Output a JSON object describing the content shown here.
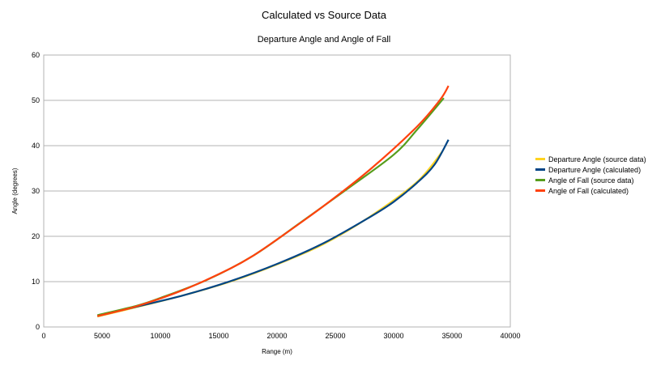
{
  "chart_data": {
    "type": "line",
    "title": "Calculated vs Source Data",
    "subtitle": "Departure Angle and Angle of Fall",
    "xlabel": "Range (m)",
    "ylabel": "Angle (degrees)",
    "xlim": [
      0,
      40000
    ],
    "ylim": [
      0,
      60
    ],
    "x_ticks": [
      "0",
      "5000",
      "10000",
      "15000",
      "20000",
      "25000",
      "30000",
      "35000",
      "40000"
    ],
    "y_ticks": [
      "0",
      "10",
      "20",
      "30",
      "40",
      "50",
      "60"
    ],
    "grid": true,
    "legend_position": "right",
    "series": [
      {
        "name": "Departure Angle (source data)",
        "color": "#ffd320",
        "points": [
          [
            4600,
            2.3
          ],
          [
            8000,
            4.4
          ],
          [
            12000,
            7.0
          ],
          [
            16000,
            10.0
          ],
          [
            20000,
            13.8
          ],
          [
            24000,
            18.3
          ],
          [
            28000,
            24.4
          ],
          [
            32000,
            32.0
          ],
          [
            34200,
            38.8
          ]
        ]
      },
      {
        "name": "Departure Angle (calculated)",
        "color": "#004586",
        "points": [
          [
            4600,
            2.4
          ],
          [
            8000,
            4.5
          ],
          [
            12000,
            7.0
          ],
          [
            16000,
            10.1
          ],
          [
            20000,
            13.9
          ],
          [
            24000,
            18.5
          ],
          [
            28000,
            24.3
          ],
          [
            30000,
            27.6
          ],
          [
            32000,
            31.8
          ],
          [
            33500,
            35.8
          ],
          [
            34700,
            41.3
          ]
        ]
      },
      {
        "name": "Angle of Fall (source data)",
        "color": "#579d1c",
        "points": [
          [
            4600,
            2.6
          ],
          [
            8000,
            4.7
          ],
          [
            10000,
            6.4
          ],
          [
            14000,
            10.4
          ],
          [
            18000,
            15.8
          ],
          [
            22000,
            23.0
          ],
          [
            26000,
            30.4
          ],
          [
            30000,
            38.0
          ],
          [
            32000,
            43.5
          ],
          [
            34300,
            50.5
          ]
        ]
      },
      {
        "name": "Angle of Fall (calculated)",
        "color": "#ff420e",
        "points": [
          [
            4600,
            2.4
          ],
          [
            8000,
            4.6
          ],
          [
            12000,
            8.2
          ],
          [
            16000,
            12.9
          ],
          [
            18000,
            15.8
          ],
          [
            20000,
            19.3
          ],
          [
            24000,
            26.7
          ],
          [
            28000,
            34.8
          ],
          [
            32000,
            44.2
          ],
          [
            34000,
            50.2
          ],
          [
            34700,
            53.2
          ]
        ]
      }
    ]
  }
}
